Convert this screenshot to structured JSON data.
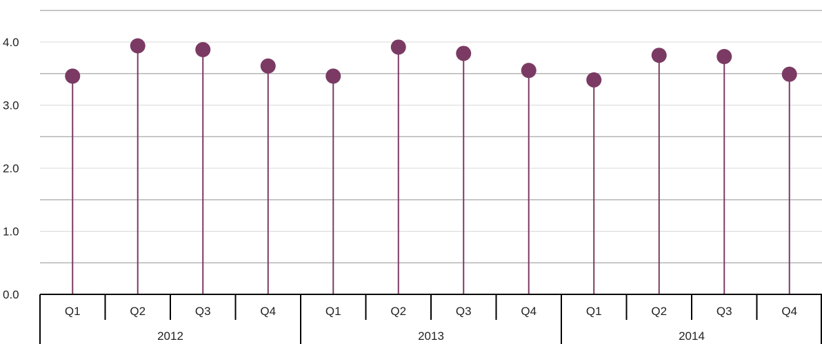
{
  "chart_data": {
    "type": "lollipop",
    "title": "",
    "xlabel": "",
    "ylabel": "",
    "ylim": [
      0,
      4.6
    ],
    "yticks": [
      0.0,
      1.0,
      2.0,
      3.0,
      4.0
    ],
    "ytick_labels": [
      "0.0",
      "1.0",
      "2.0",
      "3.0",
      "4.0"
    ],
    "minor_gridlines": [
      0.5,
      1.5,
      2.5,
      3.5,
      4.5
    ],
    "grid": true,
    "legend": "none",
    "groups": [
      {
        "label": "2012",
        "categories": [
          "Q1",
          "Q2",
          "Q3",
          "Q4"
        ],
        "values": [
          3.46,
          3.94,
          3.88,
          3.62
        ]
      },
      {
        "label": "2013",
        "categories": [
          "Q1",
          "Q2",
          "Q3",
          "Q4"
        ],
        "values": [
          3.46,
          3.92,
          3.82,
          3.55
        ]
      },
      {
        "label": "2014",
        "categories": [
          "Q1",
          "Q2",
          "Q3",
          "Q4"
        ],
        "values": [
          3.4,
          3.79,
          3.77,
          3.49
        ]
      }
    ],
    "series_color": "#7b3a63",
    "grid_color": "#c8c8c8",
    "axis_color": "#000000"
  }
}
